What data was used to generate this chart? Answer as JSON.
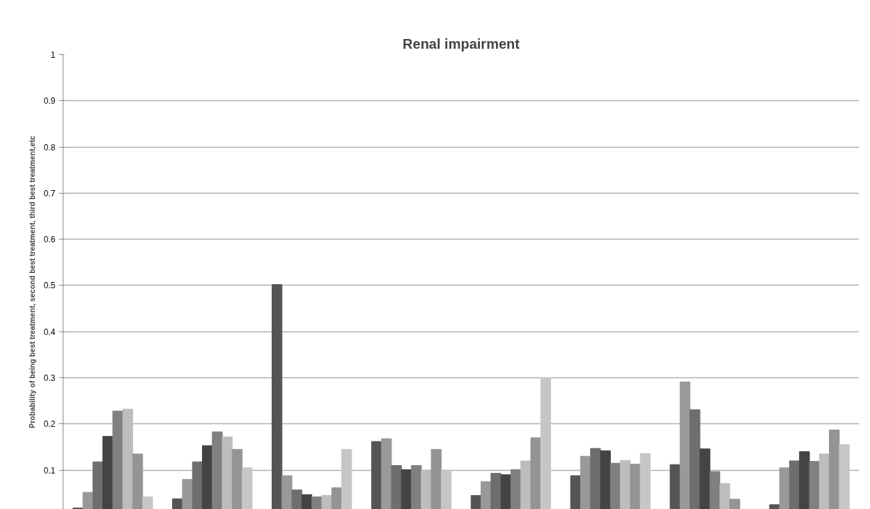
{
  "chart_data": {
    "type": "bar",
    "title": "Renal impairment",
    "ylabel": "Probability of being best treatment, second best treatment, third best treatment,etc",
    "categories": [
      null,
      null,
      null,
      null,
      null,
      null,
      null,
      null
    ],
    "series": [
      {
        "color": "#555555",
        "values": [
          0.018,
          0.038,
          0.502,
          0.162,
          0.045,
          0.088,
          0.112,
          0.025
        ]
      },
      {
        "color": "#999999",
        "values": [
          0.052,
          0.08,
          0.088,
          0.168,
          0.075,
          0.13,
          0.291,
          0.105
        ]
      },
      {
        "color": "#6e6e6e",
        "values": [
          0.118,
          0.118,
          0.057,
          0.11,
          0.093,
          0.147,
          0.231,
          0.12
        ]
      },
      {
        "color": "#444444",
        "values": [
          0.173,
          0.153,
          0.047,
          0.101,
          0.09,
          0.142,
          0.146,
          0.14
        ]
      },
      {
        "color": "#808080",
        "values": [
          0.228,
          0.183,
          0.042,
          0.11,
          0.101,
          0.115,
          0.097,
          0.119
        ]
      },
      {
        "color": "#bdbdbd",
        "values": [
          0.232,
          0.172,
          0.045,
          0.1,
          0.12,
          0.121,
          0.071,
          0.135
        ]
      },
      {
        "color": "#949494",
        "values": [
          0.135,
          0.145,
          0.062,
          0.145,
          0.17,
          0.113,
          0.037,
          0.187
        ]
      },
      {
        "color": "#c6c6c6",
        "values": [
          0.042,
          0.105,
          0.145,
          0.1,
          0.3,
          0.136,
          null,
          0.155
        ]
      }
    ],
    "ylim": [
      0.015,
      1
    ],
    "yticks": [
      0.1,
      0.2,
      0.3,
      0.4,
      0.5,
      0.6,
      0.7,
      0.8,
      0.9,
      1
    ],
    "grid": "y",
    "tick_labels": "y"
  }
}
